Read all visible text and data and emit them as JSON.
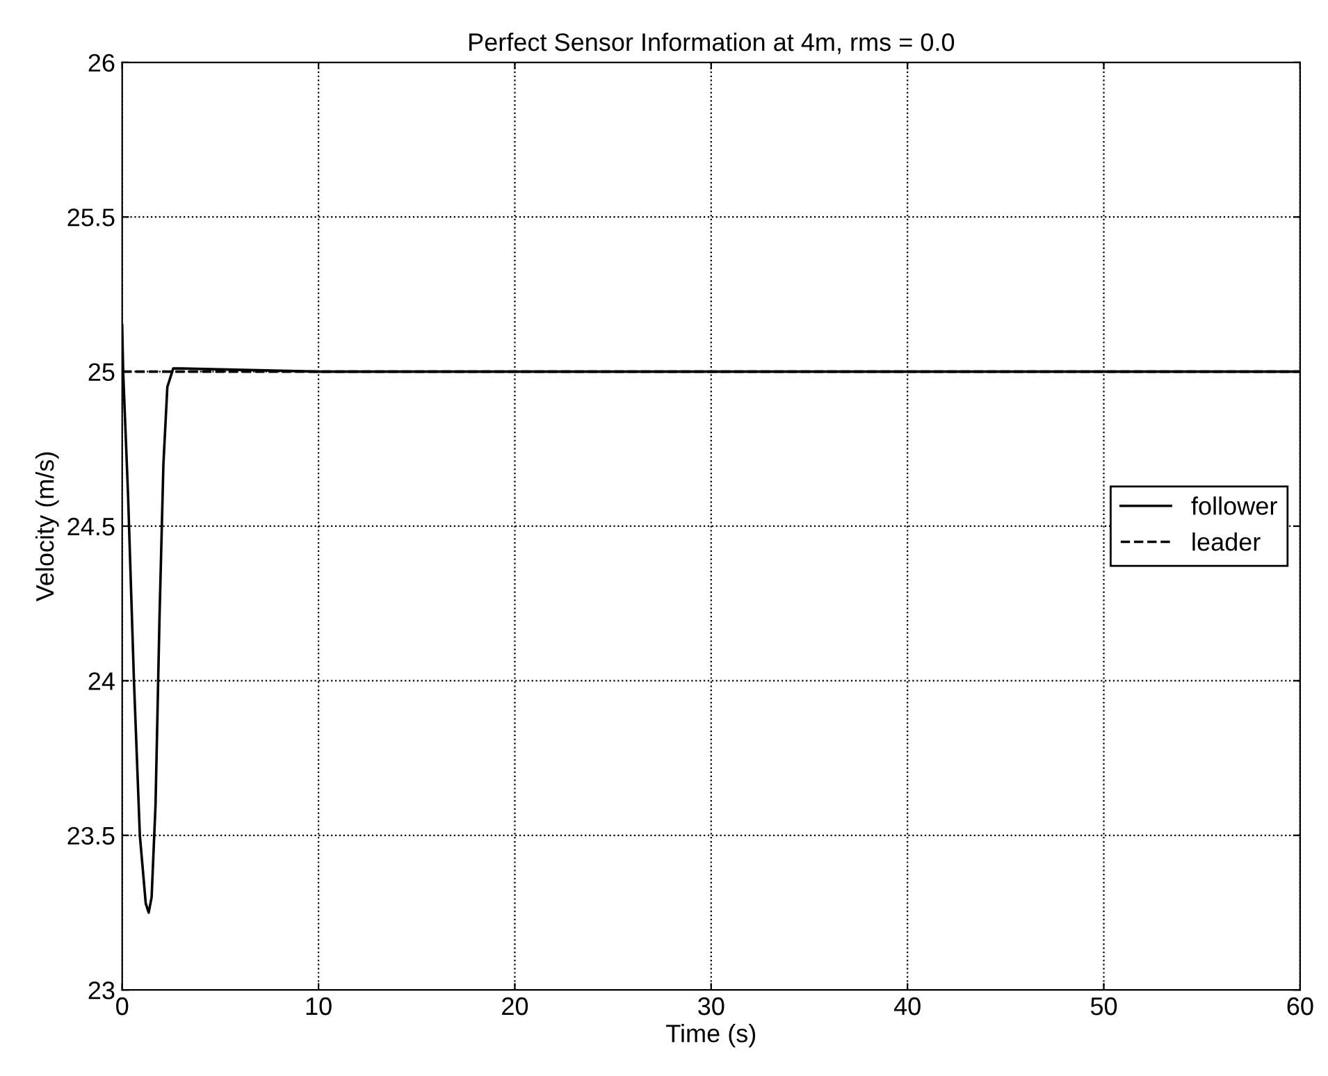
{
  "chart_data": {
    "type": "line",
    "title": "Perfect Sensor Information at 4m, rms = 0.0",
    "xlabel": "Time (s)",
    "ylabel": "Velocity (m/s)",
    "series": [
      {
        "name": "follower",
        "color": "#000000",
        "line_style": "solid",
        "x": [
          0,
          0.05,
          0.3,
          0.6,
          0.9,
          1.2,
          1.35,
          1.5,
          1.7,
          1.9,
          2.1,
          2.3,
          2.6,
          3,
          10,
          20,
          30,
          40,
          50,
          60
        ],
        "values": [
          25.15,
          25.0,
          24.6,
          24.0,
          23.5,
          23.28,
          23.25,
          23.3,
          23.6,
          24.2,
          24.7,
          24.95,
          25.01,
          25.01,
          25.0,
          25.0,
          25.0,
          25.0,
          25.0,
          25.0
        ]
      },
      {
        "name": "leader",
        "color": "#000000",
        "line_style": "dashed",
        "x": [
          0,
          10,
          20,
          30,
          40,
          50,
          60
        ],
        "values": [
          25,
          25,
          25,
          25,
          25,
          25,
          25
        ]
      }
    ],
    "xlim": [
      0,
      60
    ],
    "xticks": [
      0,
      10,
      20,
      30,
      40,
      50,
      60
    ],
    "ylim": [
      23,
      26
    ],
    "yticks": [
      23,
      23.5,
      24,
      24.5,
      25,
      25.5,
      26
    ],
    "grid": true,
    "legend": "right",
    "marker": "none"
  }
}
